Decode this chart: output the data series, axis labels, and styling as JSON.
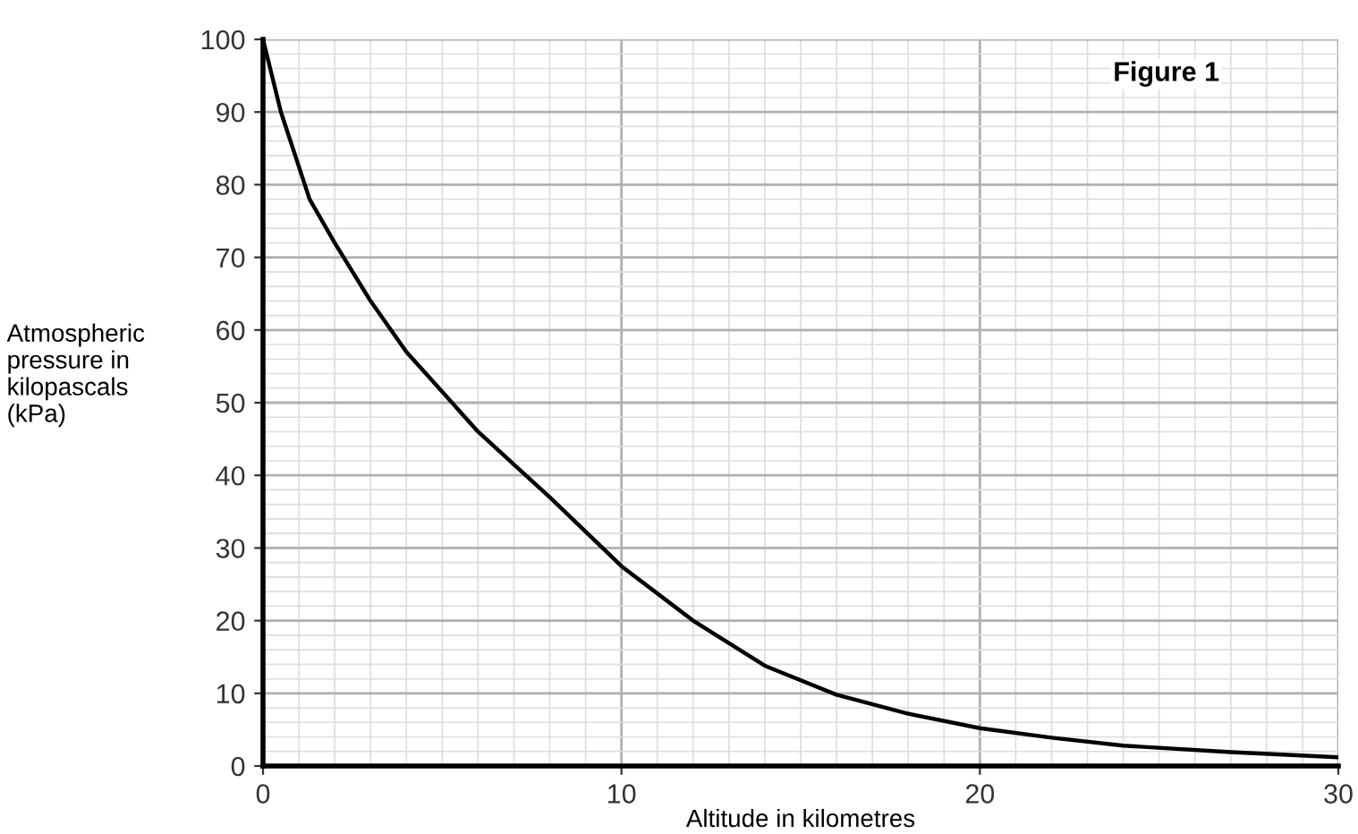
{
  "chart_data": {
    "type": "line",
    "title": "Figure 1",
    "xlabel": "Altitude in kilometres",
    "ylabel": "Atmospheric\npressure in\nkilopascals\n(kPa)",
    "x": [
      0,
      0.5,
      1.3,
      2,
      3,
      4,
      5,
      6,
      7,
      8,
      10,
      12,
      14,
      16,
      18,
      20,
      22,
      24,
      27,
      30
    ],
    "series": [
      {
        "color": "#000000",
        "values": [
          100,
          90,
          78,
          72,
          64,
          57,
          51.5,
          46,
          41.5,
          37,
          27.5,
          20,
          13.8,
          9.8,
          7.2,
          5.2,
          3.9,
          2.8,
          1.9,
          1.2
        ]
      }
    ],
    "xlim": [
      0,
      30
    ],
    "ylim": [
      0,
      100
    ],
    "xticks": [
      0,
      10,
      20,
      30
    ],
    "yticks": [
      0,
      10,
      20,
      30,
      40,
      50,
      60,
      70,
      80,
      90,
      100
    ],
    "grid": true,
    "marker": "none",
    "line_style": "solid"
  }
}
